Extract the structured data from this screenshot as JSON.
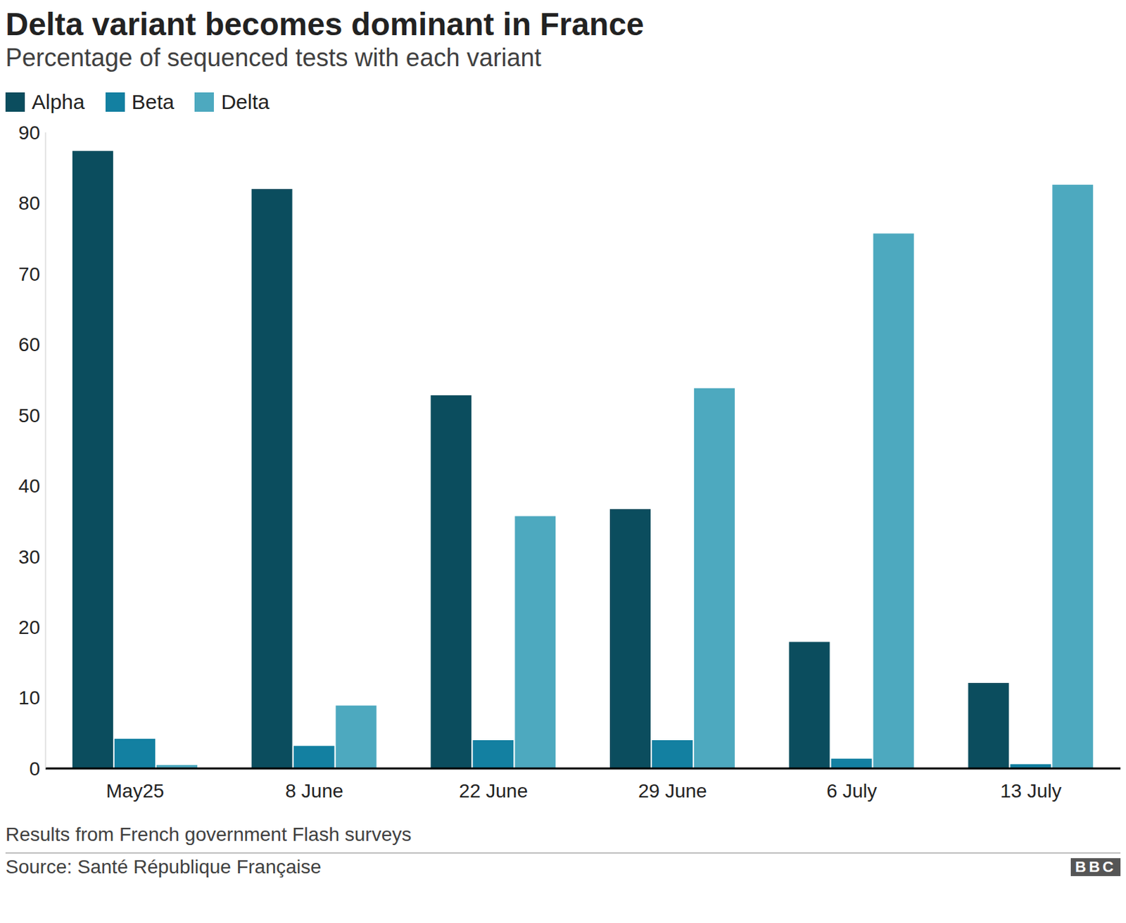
{
  "chart_data": {
    "type": "bar",
    "title": "Delta variant becomes dominant in France",
    "subtitle": "Percentage of sequenced tests with each variant",
    "categories": [
      "May25",
      "8 June",
      "22 June",
      "29 June",
      "6 July",
      "13 July"
    ],
    "series": [
      {
        "name": "Alpha",
        "color": "#0b4d5e",
        "values": [
          87.4,
          82.0,
          52.8,
          36.7,
          17.9,
          12.1
        ]
      },
      {
        "name": "Beta",
        "color": "#1380a1",
        "values": [
          4.2,
          3.2,
          4.0,
          4.0,
          1.4,
          0.6
        ]
      },
      {
        "name": "Delta",
        "color": "#4da9bf",
        "values": [
          0.5,
          8.9,
          35.7,
          53.8,
          75.7,
          82.6
        ]
      }
    ],
    "ylim": [
      0,
      90
    ],
    "yticks": [
      0,
      10,
      20,
      30,
      40,
      50,
      60,
      70,
      80,
      90
    ],
    "grid": false,
    "legend": "top-left",
    "footnote": "Results from French government Flash surveys",
    "source": "Source: Santé République Française",
    "logo": "BBC"
  }
}
